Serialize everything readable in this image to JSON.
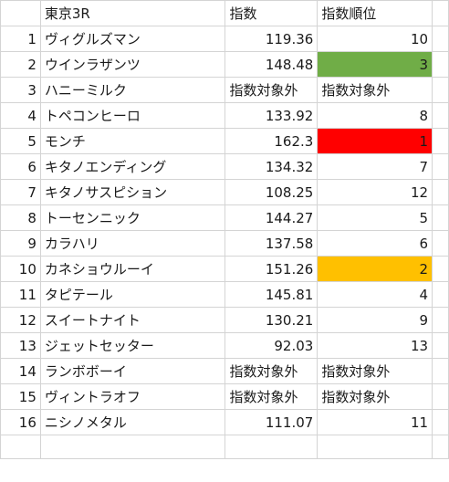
{
  "header": {
    "race": "東京3R",
    "index": "指数",
    "rank": "指数順位"
  },
  "colors": {
    "rank_1": "#ff0000",
    "rank_2": "#ffc000",
    "rank_3": "#70ad47",
    "gridline": "#d4d4d4"
  },
  "rows": [
    {
      "no": "1",
      "name": "ヴィグルズマン",
      "index": "119.36",
      "rank": "10"
    },
    {
      "no": "2",
      "name": "ウインラザンツ",
      "index": "148.48",
      "rank": "3"
    },
    {
      "no": "3",
      "name": "ハニーミルク",
      "index": "指数対象外",
      "rank": "指数対象外"
    },
    {
      "no": "4",
      "name": "トペコンヒーロ",
      "index": "133.92",
      "rank": "8"
    },
    {
      "no": "5",
      "name": "モンチ",
      "index": "162.3",
      "rank": "1"
    },
    {
      "no": "6",
      "name": "キタノエンディング",
      "index": "134.32",
      "rank": "7"
    },
    {
      "no": "7",
      "name": "キタノサスピション",
      "index": "108.25",
      "rank": "12"
    },
    {
      "no": "8",
      "name": "トーセンニック",
      "index": "144.27",
      "rank": "5"
    },
    {
      "no": "9",
      "name": "カラハリ",
      "index": "137.58",
      "rank": "6"
    },
    {
      "no": "10",
      "name": "カネショウルーイ",
      "index": "151.26",
      "rank": "2"
    },
    {
      "no": "11",
      "name": "タピテール",
      "index": "145.81",
      "rank": "4"
    },
    {
      "no": "12",
      "name": "スイートナイト",
      "index": "130.21",
      "rank": "9"
    },
    {
      "no": "13",
      "name": "ジェットセッター",
      "index": "92.03",
      "rank": "13"
    },
    {
      "no": "14",
      "name": "ランボボーイ",
      "index": "指数対象外",
      "rank": "指数対象外"
    },
    {
      "no": "15",
      "name": "ヴィントラオフ",
      "index": "指数対象外",
      "rank": "指数対象外"
    },
    {
      "no": "16",
      "name": "ニシノメタル",
      "index": "111.07",
      "rank": "11"
    }
  ]
}
